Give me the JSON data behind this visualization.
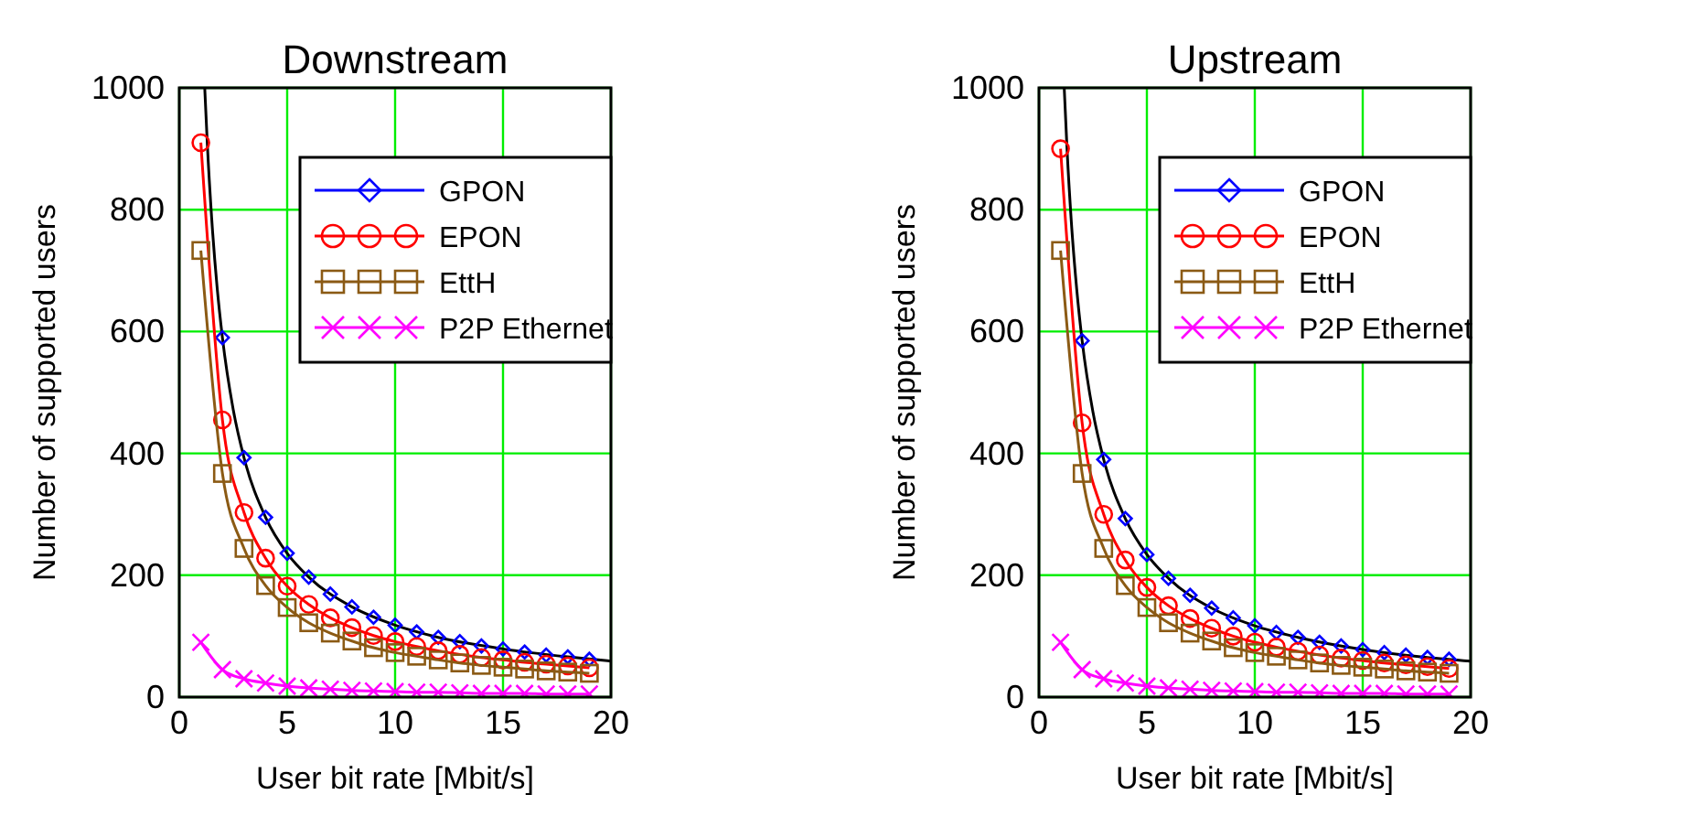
{
  "chart_data": [
    {
      "type": "line",
      "title": "Downstream",
      "xlabel": "User bit rate [Mbit/s]",
      "ylabel": "Number of supported users",
      "xlim": [
        0,
        20
      ],
      "ylim": [
        0,
        1000
      ],
      "xticks": [
        0,
        5,
        10,
        15,
        20
      ],
      "yticks": [
        0,
        200,
        400,
        600,
        800,
        1000
      ],
      "grid": true,
      "legend": "top right",
      "x": [
        1,
        2,
        3,
        4,
        5,
        6,
        7,
        8,
        9,
        10,
        11,
        12,
        13,
        14,
        15,
        16,
        17,
        18,
        19
      ],
      "series": [
        {
          "type": "line",
          "color": "#000000",
          "marker": "none",
          "x": [
            1.18,
            1.3,
            1.5,
            1.75,
            2,
            2.5,
            3,
            4,
            5,
            6,
            8,
            10,
            12,
            15,
            18,
            20
          ],
          "values": [
            1000,
            908,
            787,
            674,
            590,
            472,
            393,
            295,
            236,
            197,
            148,
            118,
            98,
            79,
            66,
            59
          ]
        },
        {
          "name": "GPON",
          "type": "scatter",
          "color": "#0000ff",
          "marker": "diamond",
          "x": [
            2,
            3,
            4,
            5,
            6,
            7,
            8,
            9,
            10,
            11,
            12,
            13,
            14,
            15,
            16,
            17,
            18,
            19
          ],
          "values": [
            590,
            393,
            295,
            236,
            197,
            169,
            148,
            131,
            118,
            107,
            98,
            91,
            84,
            79,
            74,
            69,
            66,
            62
          ]
        },
        {
          "name": "EPON",
          "color": "#ff0000",
          "marker": "circle",
          "values": [
            910,
            455,
            303,
            228,
            182,
            152,
            130,
            114,
            101,
            91,
            83,
            76,
            70,
            65,
            61,
            57,
            54,
            51,
            48
          ]
        },
        {
          "name": "EttH",
          "type": "line",
          "color": "#8b5a14",
          "marker": "square",
          "values": [
            733,
            367,
            244,
            183,
            147,
            122,
            105,
            92,
            81,
            73,
            67,
            61,
            56,
            52,
            49,
            46,
            43,
            41,
            39
          ]
        },
        {
          "name": "P2P Ethernet",
          "type": "line",
          "color": "#ff00ff",
          "marker": "cross",
          "values": [
            90,
            45,
            30,
            23,
            18,
            15,
            13,
            11,
            10,
            9,
            8,
            8,
            7,
            6,
            6,
            6,
            5,
            5,
            5
          ]
        }
      ]
    },
    {
      "type": "line",
      "title": "Upstream",
      "xlabel": "User bit rate [Mbit/s]",
      "ylabel": "Number of supported users",
      "xlim": [
        0,
        20
      ],
      "ylim": [
        0,
        1000
      ],
      "xticks": [
        0,
        5,
        10,
        15,
        20
      ],
      "yticks": [
        0,
        200,
        400,
        600,
        800,
        1000
      ],
      "grid": true,
      "legend": "top right",
      "x": [
        1,
        2,
        3,
        4,
        5,
        6,
        7,
        8,
        9,
        10,
        11,
        12,
        13,
        14,
        15,
        16,
        17,
        18,
        19
      ],
      "series": [
        {
          "type": "line",
          "color": "#000000",
          "marker": "none",
          "x": [
            1.17,
            1.3,
            1.5,
            1.75,
            2,
            2.5,
            3,
            4,
            5,
            6,
            8,
            10,
            12,
            15,
            18,
            20
          ],
          "values": [
            1000,
            900,
            780,
            669,
            585,
            468,
            390,
            293,
            234,
            195,
            146,
            117,
            98,
            78,
            65,
            59
          ]
        },
        {
          "name": "GPON",
          "type": "scatter",
          "color": "#0000ff",
          "marker": "diamond",
          "x": [
            2,
            3,
            4,
            5,
            6,
            7,
            8,
            9,
            10,
            11,
            12,
            13,
            14,
            15,
            16,
            17,
            18,
            19
          ],
          "values": [
            585,
            390,
            293,
            234,
            195,
            167,
            146,
            130,
            117,
            106,
            98,
            90,
            84,
            78,
            73,
            69,
            65,
            62
          ]
        },
        {
          "name": "EPON",
          "color": "#ff0000",
          "marker": "circle",
          "values": [
            900,
            450,
            300,
            225,
            180,
            150,
            129,
            113,
            100,
            90,
            82,
            75,
            69,
            64,
            60,
            56,
            53,
            50,
            47
          ]
        },
        {
          "name": "EttH",
          "type": "line",
          "color": "#8b5a14",
          "marker": "square",
          "values": [
            733,
            367,
            244,
            183,
            147,
            122,
            105,
            92,
            81,
            73,
            67,
            61,
            56,
            52,
            49,
            46,
            43,
            41,
            39
          ]
        },
        {
          "name": "P2P Ethernet",
          "type": "line",
          "color": "#ff00ff",
          "marker": "cross",
          "values": [
            90,
            45,
            30,
            23,
            18,
            15,
            13,
            11,
            10,
            9,
            8,
            8,
            7,
            6,
            6,
            6,
            5,
            5,
            5
          ]
        }
      ]
    }
  ]
}
